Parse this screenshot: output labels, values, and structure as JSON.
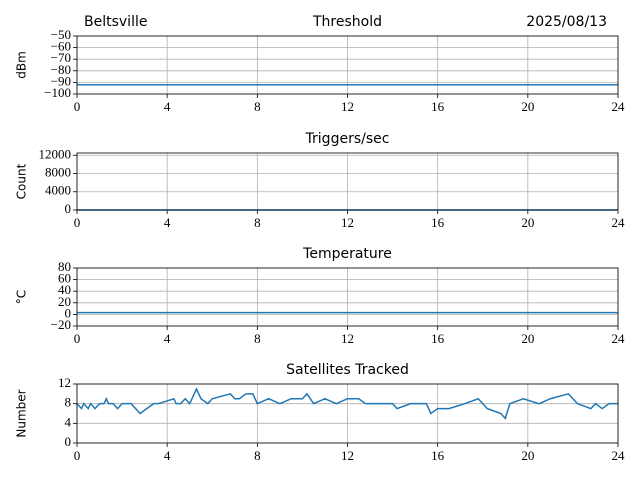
{
  "chart_data": [
    {
      "type": "line",
      "title": "Threshold",
      "location": "Beltsville",
      "date": "2025/08/13",
      "ylabel": "dBm",
      "xlim": [
        0,
        24
      ],
      "xticks": [
        0,
        4,
        8,
        12,
        16,
        20,
        24
      ],
      "ylim": [
        -100,
        -50
      ],
      "yticks": [
        {
          "value": -100,
          "label": "−100"
        },
        {
          "value": -90,
          "label": "−90"
        },
        {
          "value": -80,
          "label": "−80"
        },
        {
          "value": -70,
          "label": "−70"
        },
        {
          "value": -60,
          "label": "−60"
        },
        {
          "value": -50,
          "label": "−50"
        }
      ],
      "grid": true,
      "series": [
        {
          "color": "#1f77b4",
          "x": [
            0,
            24
          ],
          "values": [
            -92,
            -92
          ]
        }
      ]
    },
    {
      "type": "line",
      "title": "Triggers/sec",
      "ylabel": "Count",
      "xlim": [
        0,
        24
      ],
      "xticks": [
        0,
        4,
        8,
        12,
        16,
        20,
        24
      ],
      "ylim": [
        0,
        12500
      ],
      "yticks": [
        0,
        4000,
        8000,
        12000
      ],
      "grid": true,
      "series": [
        {
          "color": "#1f77b4",
          "x": [
            0,
            24
          ],
          "values": [
            0,
            0
          ]
        }
      ]
    },
    {
      "type": "line",
      "title": "Temperature",
      "ylabel": "°C",
      "xlim": [
        0,
        24
      ],
      "xticks": [
        0,
        4,
        8,
        12,
        16,
        20,
        24
      ],
      "ylim": [
        -20,
        80
      ],
      "yticks": [
        {
          "value": -20,
          "label": "−20"
        },
        0,
        20,
        40,
        60,
        80
      ],
      "grid": true,
      "series": [
        {
          "color": "#1f77b4",
          "x": [
            0,
            24
          ],
          "values": [
            3,
            3
          ]
        }
      ]
    },
    {
      "type": "line",
      "title": "Satellites Tracked",
      "ylabel": "Number",
      "xlim": [
        0,
        24
      ],
      "xticks": [
        0,
        4,
        8,
        12,
        16,
        20,
        24
      ],
      "ylim": [
        0,
        12
      ],
      "yticks": [
        0,
        4,
        8,
        12
      ],
      "grid": true,
      "series": [
        {
          "color": "#1f77b4",
          "x": [
            0,
            0.2,
            0.3,
            0.5,
            0.6,
            0.8,
            1.0,
            1.2,
            1.3,
            1.4,
            1.6,
            1.8,
            2.0,
            2.4,
            2.6,
            2.8,
            3.4,
            3.6,
            4.3,
            4.4,
            4.6,
            4.8,
            5.0,
            5.2,
            5.3,
            5.5,
            5.8,
            6.0,
            6.8,
            7.0,
            7.2,
            7.5,
            7.8,
            8.0,
            8.5,
            9.0,
            9.5,
            10.0,
            10.2,
            10.5,
            11.0,
            11.5,
            12.0,
            12.5,
            12.8,
            13.5,
            14.0,
            14.2,
            14.8,
            15.5,
            15.7,
            16.0,
            16.5,
            17.2,
            17.8,
            18.2,
            18.8,
            19.0,
            19.2,
            19.8,
            20.5,
            21.0,
            21.8,
            22.2,
            22.8,
            23.0,
            23.3,
            23.6,
            24
          ],
          "values": [
            8,
            7,
            8,
            7,
            8,
            7,
            8,
            8,
            9,
            8,
            8,
            7,
            8,
            8,
            7,
            6,
            8,
            8,
            9,
            8,
            8,
            9,
            8,
            10,
            11,
            9,
            8,
            9,
            10,
            9,
            9,
            10,
            10,
            8,
            9,
            8,
            9,
            9,
            10,
            8,
            9,
            8,
            9,
            9,
            8,
            8,
            8,
            7,
            8,
            8,
            6,
            7,
            7,
            8,
            9,
            7,
            6,
            5,
            8,
            9,
            8,
            9,
            10,
            8,
            7,
            8,
            7,
            8,
            8
          ]
        }
      ]
    }
  ]
}
